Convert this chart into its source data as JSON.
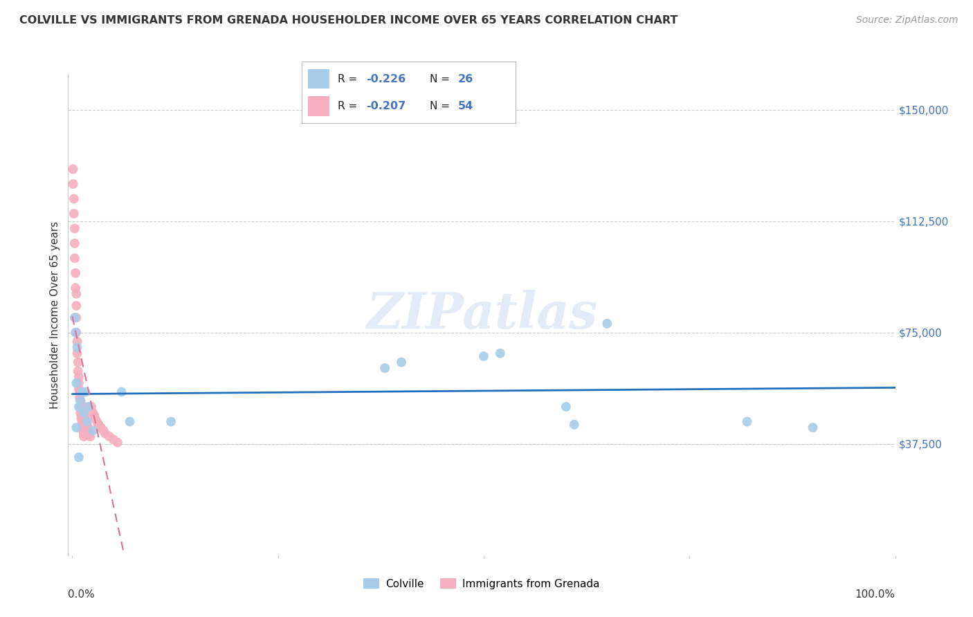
{
  "title": "COLVILLE VS IMMIGRANTS FROM GRENADA HOUSEHOLDER INCOME OVER 65 YEARS CORRELATION CHART",
  "source": "Source: ZipAtlas.com",
  "ylabel": "Householder Income Over 65 years",
  "ylim": [
    0,
    162000
  ],
  "xlim": [
    -0.005,
    1.0
  ],
  "colville_R": -0.226,
  "colville_N": 26,
  "grenada_R": -0.207,
  "grenada_N": 54,
  "colville_color": "#a8cce8",
  "grenada_color": "#f4afc0",
  "colville_line_color": "#2070c0",
  "grenada_line_color": "#e07090",
  "background_color": "#ffffff",
  "colville_x": [
    0.003,
    0.004,
    0.005,
    0.006,
    0.008,
    0.01,
    0.012,
    0.014,
    0.016,
    0.018,
    0.02,
    0.025,
    0.06,
    0.07,
    0.12,
    0.38,
    0.4,
    0.5,
    0.52,
    0.6,
    0.61,
    0.65,
    0.82,
    0.9,
    0.005,
    0.008
  ],
  "colville_y": [
    80000,
    75000,
    58000,
    70000,
    50000,
    52000,
    55000,
    48000,
    55000,
    45000,
    50000,
    42000,
    55000,
    45000,
    45000,
    63000,
    65000,
    67000,
    68000,
    50000,
    44000,
    78000,
    45000,
    43000,
    43000,
    33000
  ],
  "grenada_x": [
    0.001,
    0.001,
    0.002,
    0.002,
    0.003,
    0.003,
    0.003,
    0.004,
    0.004,
    0.005,
    0.005,
    0.005,
    0.005,
    0.006,
    0.006,
    0.007,
    0.007,
    0.008,
    0.008,
    0.008,
    0.009,
    0.009,
    0.01,
    0.01,
    0.01,
    0.011,
    0.011,
    0.012,
    0.012,
    0.013,
    0.013,
    0.014,
    0.014,
    0.015,
    0.015,
    0.016,
    0.017,
    0.018,
    0.019,
    0.02,
    0.021,
    0.022,
    0.023,
    0.025,
    0.027,
    0.028,
    0.03,
    0.032,
    0.035,
    0.038,
    0.04,
    0.045,
    0.05,
    0.055
  ],
  "grenada_y": [
    130000,
    125000,
    120000,
    115000,
    110000,
    105000,
    100000,
    95000,
    90000,
    88000,
    84000,
    80000,
    75000,
    72000,
    68000,
    65000,
    62000,
    60000,
    58000,
    56000,
    55000,
    53000,
    52000,
    50000,
    48000,
    47000,
    46000,
    45000,
    44000,
    43000,
    42000,
    41000,
    40000,
    50000,
    48000,
    46000,
    45000,
    44000,
    43000,
    42000,
    41000,
    40000,
    50000,
    48000,
    47000,
    46000,
    45000,
    44000,
    43000,
    42000,
    41000,
    40000,
    39000,
    38000
  ],
  "ytick_vals": [
    37500,
    75000,
    112500,
    150000
  ],
  "ytick_labels": [
    "$37,500",
    "$75,000",
    "$112,500",
    "$150,000"
  ]
}
